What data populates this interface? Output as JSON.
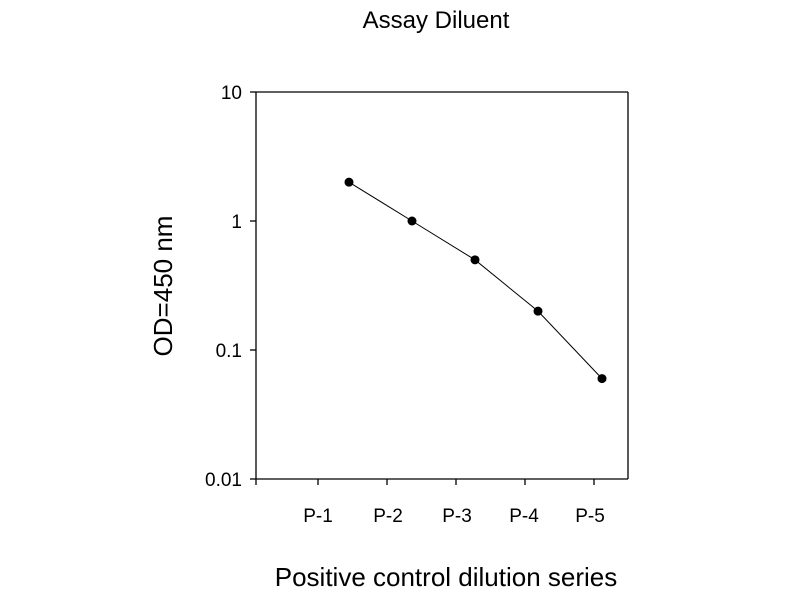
{
  "chart_data": {
    "type": "line",
    "title": "Assay Diluent",
    "xlabel": "Positive control dilution series",
    "ylabel": "OD=450 nm",
    "categories": [
      "P-1",
      "P-2",
      "P-3",
      "P-4",
      "P-5"
    ],
    "y_scale": "log",
    "ylim": [
      0.01,
      10
    ],
    "y_ticks": [
      {
        "value": 10,
        "label": "10"
      },
      {
        "value": 1,
        "label": "1"
      },
      {
        "value": 0.1,
        "label": "0.1"
      },
      {
        "value": 0.01,
        "label": "0.01"
      }
    ],
    "series": [
      {
        "values": [
          2.0,
          1.0,
          0.5,
          0.2,
          0.06
        ],
        "color": "#000000"
      }
    ],
    "grid": false,
    "legend": "none"
  }
}
